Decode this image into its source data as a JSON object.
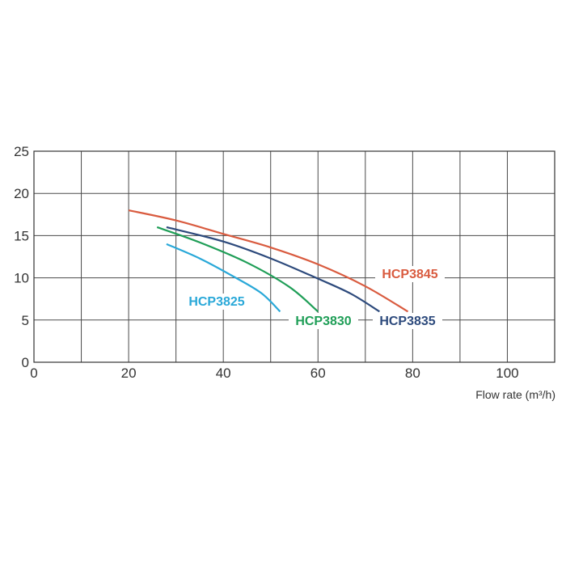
{
  "chart_data": {
    "type": "line",
    "xlabel": "Flow rate (m³/h)",
    "ylabel": "",
    "xlim": [
      0,
      110
    ],
    "ylim": [
      0,
      25
    ],
    "xticks": [
      "0",
      "20",
      "40",
      "60",
      "80",
      "100"
    ],
    "yticks": [
      "0",
      "5",
      "10",
      "15",
      "20",
      "25"
    ],
    "grid": true,
    "series": [
      {
        "name": "HCP3825",
        "color": "#29a8d8",
        "points": [
          [
            28,
            14
          ],
          [
            35,
            12.3
          ],
          [
            42,
            10.2
          ],
          [
            48,
            8.2
          ],
          [
            52,
            6
          ]
        ]
      },
      {
        "name": "HCP3830",
        "color": "#1f9e57",
        "points": [
          [
            26,
            16
          ],
          [
            35,
            14.2
          ],
          [
            45,
            11.8
          ],
          [
            54,
            8.9
          ],
          [
            60,
            6
          ]
        ]
      },
      {
        "name": "HCP3835",
        "color": "#2d4a7c",
        "points": [
          [
            28,
            16
          ],
          [
            40,
            14.3
          ],
          [
            50,
            12.3
          ],
          [
            60,
            9.9
          ],
          [
            67,
            8.1
          ],
          [
            73,
            6
          ]
        ]
      },
      {
        "name": "HCP3845",
        "color": "#d95b3f",
        "points": [
          [
            20,
            18
          ],
          [
            30,
            16.8
          ],
          [
            40,
            15.2
          ],
          [
            50,
            13.6
          ],
          [
            60,
            11.6
          ],
          [
            70,
            9
          ],
          [
            79,
            6
          ]
        ]
      }
    ]
  }
}
